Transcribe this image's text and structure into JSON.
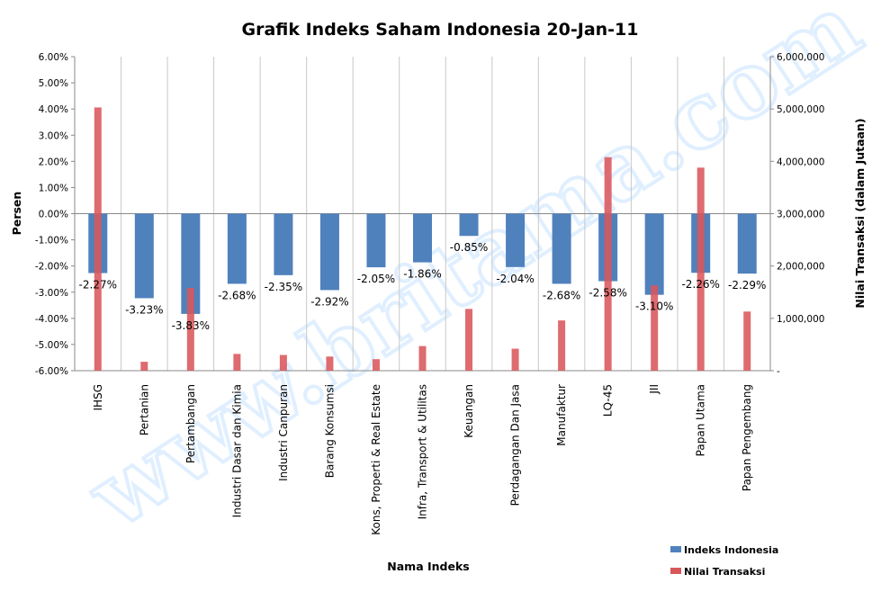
{
  "watermark": "www.britama.com",
  "chart_data": {
    "type": "bar",
    "title": "Grafik Indeks Saham Indonesia  20-Jan-11",
    "xlabel": "Nama Indeks",
    "ylabel": "Persen",
    "y2label": "Nilai Transaksi (dalam Jutaan)",
    "ylim": [
      -6,
      6
    ],
    "y2lim": [
      0,
      6000000
    ],
    "y_ticks": [
      "6.00%",
      "5.00%",
      "4.00%",
      "3.00%",
      "2.00%",
      "1.00%",
      "0.00%",
      "-1.00%",
      "-2.00%",
      "-3.00%",
      "-4.00%",
      "-5.00%",
      "-6.00%"
    ],
    "y2_ticks": [
      "6,000,000",
      "5,000,000",
      "4,000,000",
      "3,000,000",
      "2,000,000",
      "1,000,000",
      "-"
    ],
    "grid": "vertical",
    "legend_position": "bottom-right",
    "categories": [
      "IHSG",
      "Pertanian",
      "Pertambangan",
      "Industri Dasar dan Kimia",
      "Industri Canpuran",
      "Barang Konsumsi",
      "Kons, Properti & Real Estate",
      "Infra, Transport & Utilitas",
      "Keuangan",
      "Perdagangan Dan Jasa",
      "Manufaktur",
      "LQ-45",
      "JII",
      "Papan Utama",
      "Papan Pengembang"
    ],
    "series": [
      {
        "name": "Indeks Indonesia",
        "color": "#4f81bd",
        "axis": "left",
        "values": [
          -2.27,
          -3.23,
          -3.83,
          -2.68,
          -2.35,
          -2.92,
          -2.05,
          -1.86,
          -0.85,
          -2.04,
          -2.68,
          -2.58,
          -3.1,
          -2.26,
          -2.29
        ],
        "labels": [
          "-2.27%",
          "-3.23%",
          "-3.83%",
          "-2.68%",
          "-2.35%",
          "-2.92%",
          "-2.05%",
          "-1.86%",
          "-0.85%",
          "-2.04%",
          "-2.68%",
          "-2.58%",
          "-3.10%",
          "-2.26%",
          "-2.29%"
        ]
      },
      {
        "name": "Nilai Transaksi",
        "color": "#d9575b",
        "axis": "right",
        "values": [
          5030000,
          170000,
          1580000,
          320000,
          300000,
          270000,
          220000,
          470000,
          1180000,
          420000,
          960000,
          4080000,
          1630000,
          3880000,
          1130000
        ]
      }
    ]
  }
}
